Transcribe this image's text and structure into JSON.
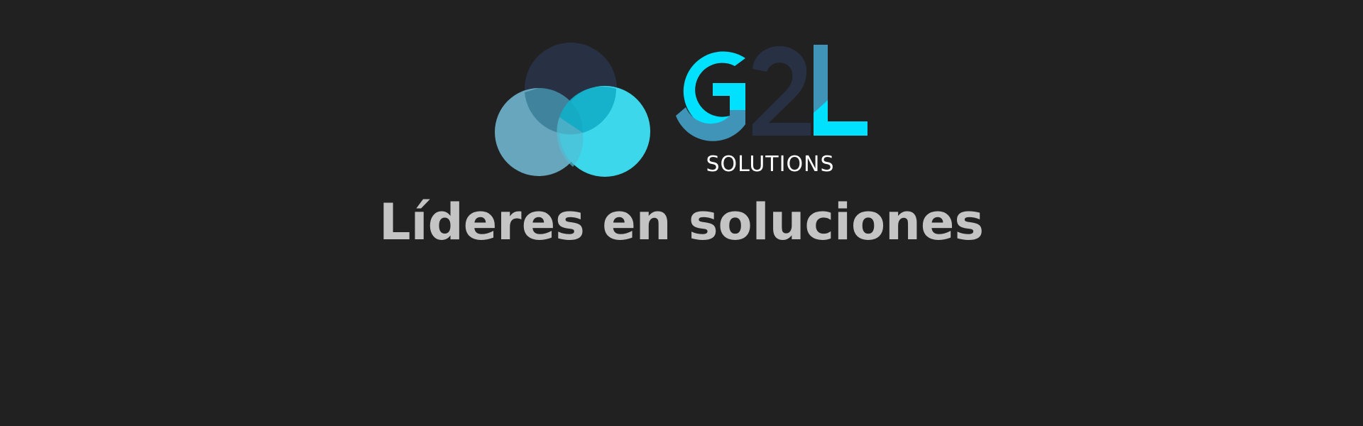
{
  "logo": {
    "wordmark": "G2L",
    "subtitle": "SOLUTIONS",
    "icon": "three-overlapping-circles-icon"
  },
  "colors": {
    "background": "#212121",
    "cyan": "#00e0ff",
    "steel_blue": "#3f94b7",
    "navy": "#283144",
    "light_steel": "#68a6bd",
    "light_cyan": "#3cd7ea",
    "text": "#c4c4c4",
    "subtitle_text": "#ffffff"
  },
  "hero": {
    "tagline": "Líderes en soluciones"
  }
}
